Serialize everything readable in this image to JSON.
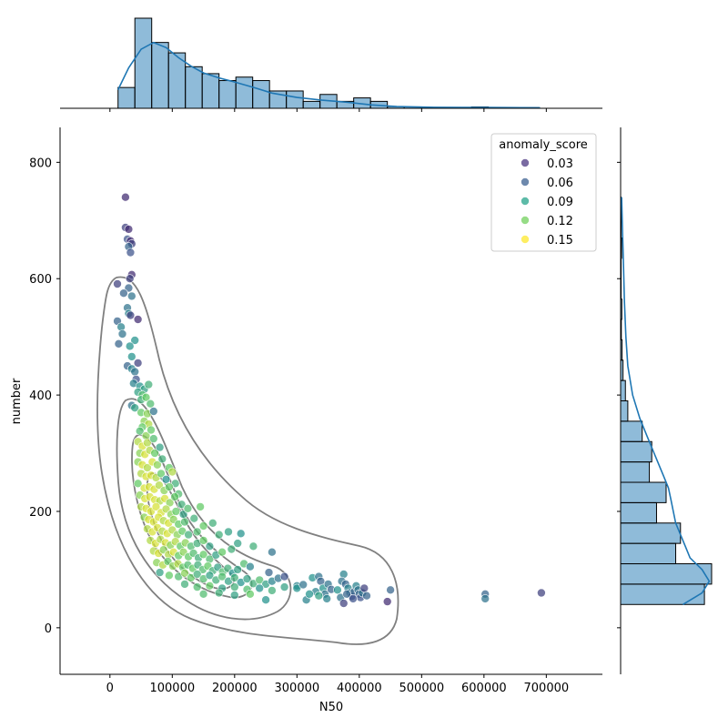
{
  "chart_data": {
    "type": "scatter",
    "variant": "jointplot with marginal histograms, KDE curves and density contours",
    "xlabel": "N50",
    "ylabel": "number",
    "xlim": [
      -80000,
      790000
    ],
    "ylim": [
      -80,
      860
    ],
    "x_ticks": [
      0,
      100000,
      200000,
      300000,
      400000,
      500000,
      600000,
      700000
    ],
    "x_tick_labels": [
      "0",
      "100000",
      "200000",
      "300000",
      "400000",
      "500000",
      "600000",
      "700000"
    ],
    "y_ticks": [
      0,
      200,
      400,
      600,
      800
    ],
    "y_tick_labels": [
      "0",
      "200",
      "400",
      "600",
      "800"
    ],
    "grid": false,
    "legend": {
      "title": "anomaly_score",
      "placement": "top-right",
      "entries": [
        {
          "label": "0.03",
          "color": "#46327e"
        },
        {
          "label": "0.06",
          "color": "#365c8d"
        },
        {
          "label": "0.09",
          "color": "#1fa187"
        },
        {
          "label": "0.12",
          "color": "#6ece58"
        },
        {
          "label": "0.15",
          "color": "#fde725"
        }
      ]
    },
    "colormap": "viridis",
    "hue_range": [
      0.0,
      0.16
    ],
    "points": [
      [
        25000,
        740,
        0.02
      ],
      [
        25000,
        688,
        0.03
      ],
      [
        30000,
        685,
        0.02
      ],
      [
        28000,
        668,
        0.04
      ],
      [
        33000,
        665,
        0.02
      ],
      [
        35000,
        660,
        0.03
      ],
      [
        30000,
        655,
        0.05
      ],
      [
        33000,
        645,
        0.04
      ],
      [
        35000,
        607,
        0.02
      ],
      [
        32000,
        600,
        0.03
      ],
      [
        12000,
        591,
        0.03
      ],
      [
        30000,
        584,
        0.05
      ],
      [
        22000,
        575,
        0.05
      ],
      [
        35000,
        570,
        0.06
      ],
      [
        28000,
        550,
        0.06
      ],
      [
        30000,
        540,
        0.07
      ],
      [
        33000,
        537,
        0.03
      ],
      [
        45000,
        530,
        0.02
      ],
      [
        12000,
        527,
        0.05
      ],
      [
        18000,
        517,
        0.07
      ],
      [
        20000,
        505,
        0.06
      ],
      [
        14000,
        488,
        0.05
      ],
      [
        40000,
        494,
        0.08
      ],
      [
        32000,
        484,
        0.08
      ],
      [
        35000,
        466,
        0.08
      ],
      [
        28000,
        450,
        0.05
      ],
      [
        35000,
        445,
        0.07
      ],
      [
        45000,
        455,
        0.03
      ],
      [
        40000,
        440,
        0.06
      ],
      [
        42000,
        427,
        0.04
      ],
      [
        38000,
        420,
        0.07
      ],
      [
        48000,
        415,
        0.08
      ],
      [
        55000,
        410,
        0.09
      ],
      [
        62000,
        418,
        0.1
      ],
      [
        45000,
        405,
        0.09
      ],
      [
        52000,
        400,
        0.11
      ],
      [
        35000,
        382,
        0.06
      ],
      [
        40000,
        378,
        0.09
      ],
      [
        50000,
        392,
        0.1
      ],
      [
        58000,
        396,
        0.12
      ],
      [
        65000,
        385,
        0.11
      ],
      [
        50000,
        370,
        0.12
      ],
      [
        60000,
        368,
        0.13
      ],
      [
        70000,
        372,
        0.06
      ],
      [
        55000,
        355,
        0.13
      ],
      [
        62000,
        350,
        0.14
      ],
      [
        52000,
        345,
        0.12
      ],
      [
        48000,
        338,
        0.11
      ],
      [
        58000,
        330,
        0.13
      ],
      [
        66000,
        340,
        0.12
      ],
      [
        45000,
        320,
        0.14
      ],
      [
        52000,
        312,
        0.15
      ],
      [
        60000,
        318,
        0.14
      ],
      [
        70000,
        325,
        0.11
      ],
      [
        48000,
        300,
        0.13
      ],
      [
        56000,
        298,
        0.15
      ],
      [
        64000,
        305,
        0.14
      ],
      [
        72000,
        300,
        0.12
      ],
      [
        80000,
        310,
        0.09
      ],
      [
        45000,
        285,
        0.13
      ],
      [
        52000,
        280,
        0.15
      ],
      [
        60000,
        275,
        0.14
      ],
      [
        68000,
        285,
        0.15
      ],
      [
        76000,
        280,
        0.13
      ],
      [
        84000,
        290,
        0.1
      ],
      [
        95000,
        275,
        0.12
      ],
      [
        50000,
        265,
        0.14
      ],
      [
        58000,
        260,
        0.15
      ],
      [
        66000,
        262,
        0.15
      ],
      [
        74000,
        258,
        0.14
      ],
      [
        82000,
        265,
        0.12
      ],
      [
        90000,
        255,
        0.08
      ],
      [
        100000,
        268,
        0.14
      ],
      [
        105000,
        248,
        0.1
      ],
      [
        45000,
        248,
        0.12
      ],
      [
        55000,
        240,
        0.15
      ],
      [
        63000,
        242,
        0.15
      ],
      [
        71000,
        238,
        0.15
      ],
      [
        79000,
        245,
        0.14
      ],
      [
        87000,
        236,
        0.13
      ],
      [
        95000,
        242,
        0.12
      ],
      [
        110000,
        230,
        0.11
      ],
      [
        48000,
        228,
        0.13
      ],
      [
        56000,
        222,
        0.15
      ],
      [
        64000,
        225,
        0.15
      ],
      [
        72000,
        220,
        0.15
      ],
      [
        80000,
        218,
        0.14
      ],
      [
        88000,
        222,
        0.15
      ],
      [
        96000,
        215,
        0.13
      ],
      [
        104000,
        225,
        0.12
      ],
      [
        115000,
        212,
        0.1
      ],
      [
        50000,
        208,
        0.14
      ],
      [
        58000,
        205,
        0.15
      ],
      [
        66000,
        200,
        0.15
      ],
      [
        74000,
        208,
        0.15
      ],
      [
        82000,
        198,
        0.15
      ],
      [
        90000,
        204,
        0.14
      ],
      [
        98000,
        195,
        0.13
      ],
      [
        106000,
        200,
        0.12
      ],
      [
        118000,
        195,
        0.09
      ],
      [
        125000,
        205,
        0.11
      ],
      [
        55000,
        190,
        0.13
      ],
      [
        62000,
        186,
        0.15
      ],
      [
        70000,
        182,
        0.15
      ],
      [
        78000,
        190,
        0.15
      ],
      [
        86000,
        184,
        0.14
      ],
      [
        94000,
        180,
        0.15
      ],
      [
        102000,
        186,
        0.13
      ],
      [
        110000,
        178,
        0.12
      ],
      [
        120000,
        182,
        0.11
      ],
      [
        135000,
        188,
        0.1
      ],
      [
        145000,
        208,
        0.12
      ],
      [
        60000,
        170,
        0.14
      ],
      [
        68000,
        165,
        0.15
      ],
      [
        76000,
        172,
        0.15
      ],
      [
        84000,
        166,
        0.14
      ],
      [
        92000,
        162,
        0.15
      ],
      [
        100000,
        168,
        0.14
      ],
      [
        108000,
        160,
        0.13
      ],
      [
        116000,
        166,
        0.12
      ],
      [
        126000,
        160,
        0.1
      ],
      [
        140000,
        165,
        0.11
      ],
      [
        150000,
        175,
        0.12
      ],
      [
        165000,
        180,
        0.1
      ],
      [
        65000,
        150,
        0.14
      ],
      [
        73000,
        145,
        0.15
      ],
      [
        81000,
        152,
        0.14
      ],
      [
        89000,
        146,
        0.15
      ],
      [
        97000,
        142,
        0.13
      ],
      [
        105000,
        148,
        0.14
      ],
      [
        113000,
        140,
        0.12
      ],
      [
        121000,
        146,
        0.13
      ],
      [
        130000,
        140,
        0.11
      ],
      [
        140000,
        145,
        0.1
      ],
      [
        150000,
        150,
        0.12
      ],
      [
        160000,
        140,
        0.09
      ],
      [
        175000,
        160,
        0.1
      ],
      [
        70000,
        132,
        0.14
      ],
      [
        78000,
        128,
        0.15
      ],
      [
        86000,
        134,
        0.13
      ],
      [
        94000,
        126,
        0.14
      ],
      [
        102000,
        130,
        0.15
      ],
      [
        110000,
        124,
        0.12
      ],
      [
        118000,
        130,
        0.13
      ],
      [
        126000,
        122,
        0.12
      ],
      [
        134000,
        128,
        0.11
      ],
      [
        142000,
        120,
        0.1
      ],
      [
        150000,
        126,
        0.12
      ],
      [
        160000,
        118,
        0.11
      ],
      [
        170000,
        125,
        0.09
      ],
      [
        180000,
        130,
        0.12
      ],
      [
        195000,
        135,
        0.1
      ],
      [
        205000,
        145,
        0.09
      ],
      [
        75000,
        112,
        0.13
      ],
      [
        85000,
        108,
        0.14
      ],
      [
        93000,
        114,
        0.12
      ],
      [
        101000,
        106,
        0.13
      ],
      [
        109000,
        110,
        0.14
      ],
      [
        117000,
        104,
        0.12
      ],
      [
        125000,
        108,
        0.11
      ],
      [
        133000,
        102,
        0.12
      ],
      [
        141000,
        108,
        0.1
      ],
      [
        149000,
        100,
        0.11
      ],
      [
        157000,
        106,
        0.12
      ],
      [
        165000,
        98,
        0.1
      ],
      [
        173000,
        104,
        0.09
      ],
      [
        181000,
        96,
        0.11
      ],
      [
        189000,
        102,
        0.1
      ],
      [
        197000,
        94,
        0.08
      ],
      [
        205000,
        100,
        0.09
      ],
      [
        215000,
        110,
        0.11
      ],
      [
        225000,
        105,
        0.07
      ],
      [
        80000,
        95,
        0.09
      ],
      [
        95000,
        90,
        0.12
      ],
      [
        110000,
        88,
        0.11
      ],
      [
        120000,
        94,
        0.13
      ],
      [
        130000,
        86,
        0.12
      ],
      [
        140000,
        92,
        0.1
      ],
      [
        150000,
        84,
        0.11
      ],
      [
        160000,
        90,
        0.09
      ],
      [
        170000,
        82,
        0.1
      ],
      [
        180000,
        88,
        0.11
      ],
      [
        190000,
        80,
        0.09
      ],
      [
        200000,
        86,
        0.1
      ],
      [
        210000,
        78,
        0.08
      ],
      [
        220000,
        84,
        0.09
      ],
      [
        230000,
        76,
        0.1
      ],
      [
        240000,
        82,
        0.11
      ],
      [
        250000,
        75,
        0.09
      ],
      [
        260000,
        80,
        0.07
      ],
      [
        270000,
        85,
        0.06
      ],
      [
        280000,
        88,
        0.04
      ],
      [
        120000,
        75,
        0.1
      ],
      [
        140000,
        70,
        0.11
      ],
      [
        160000,
        72,
        0.12
      ],
      [
        180000,
        68,
        0.09
      ],
      [
        200000,
        70,
        0.1
      ],
      [
        220000,
        66,
        0.11
      ],
      [
        240000,
        68,
        0.08
      ],
      [
        260000,
        64,
        0.1
      ],
      [
        280000,
        70,
        0.09
      ],
      [
        300000,
        72,
        0.07
      ],
      [
        150000,
        58,
        0.11
      ],
      [
        175000,
        60,
        0.1
      ],
      [
        200000,
        56,
        0.09
      ],
      [
        225000,
        58,
        0.12
      ],
      [
        250000,
        48,
        0.08
      ],
      [
        260000,
        130,
        0.06
      ],
      [
        190000,
        165,
        0.09
      ],
      [
        210000,
        162,
        0.08
      ],
      [
        230000,
        140,
        0.1
      ],
      [
        255000,
        95,
        0.05
      ],
      [
        300000,
        68,
        0.08
      ],
      [
        310000,
        74,
        0.06
      ],
      [
        315000,
        48,
        0.07
      ],
      [
        325000,
        86,
        0.08
      ],
      [
        330000,
        62,
        0.07
      ],
      [
        335000,
        88,
        0.06
      ],
      [
        338000,
        80,
        0.05
      ],
      [
        342000,
        68,
        0.08
      ],
      [
        345000,
        58,
        0.06
      ],
      [
        348000,
        50,
        0.07
      ],
      [
        350000,
        75,
        0.06
      ],
      [
        355000,
        66,
        0.05
      ],
      [
        335000,
        55,
        0.09
      ],
      [
        320000,
        58,
        0.08
      ],
      [
        375000,
        92,
        0.07
      ],
      [
        372000,
        80,
        0.06
      ],
      [
        378000,
        75,
        0.05
      ],
      [
        382000,
        68,
        0.07
      ],
      [
        385000,
        60,
        0.06
      ],
      [
        388000,
        54,
        0.04
      ],
      [
        392000,
        62,
        0.05
      ],
      [
        395000,
        72,
        0.07
      ],
      [
        398000,
        65,
        0.06
      ],
      [
        400000,
        58,
        0.05
      ],
      [
        402000,
        52,
        0.04
      ],
      [
        405000,
        60,
        0.06
      ],
      [
        408000,
        68,
        0.03
      ],
      [
        412000,
        55,
        0.05
      ],
      [
        370000,
        52,
        0.06
      ],
      [
        365000,
        65,
        0.08
      ],
      [
        375000,
        42,
        0.03
      ],
      [
        380000,
        58,
        0.05
      ],
      [
        390000,
        50,
        0.04
      ],
      [
        445000,
        45,
        0.02
      ],
      [
        450000,
        65,
        0.05
      ],
      [
        602000,
        58,
        0.05
      ],
      [
        602000,
        50,
        0.06
      ],
      [
        692000,
        60,
        0.03
      ]
    ],
    "contour_levels": [
      "outer",
      "second",
      "third",
      "inner"
    ],
    "top_histogram": {
      "axis": "N50",
      "bin_edges": [
        13000,
        40000,
        67000,
        94000,
        121000,
        148000,
        175000,
        202000,
        229000,
        256000,
        283000,
        310000,
        337000,
        364000,
        391000,
        418000,
        445000,
        472000,
        499000,
        526000,
        553000,
        580000,
        607000,
        634000,
        661000,
        688000
      ],
      "counts": [
        6,
        26,
        19,
        16,
        12,
        10,
        8,
        9,
        8,
        5,
        5,
        2,
        4,
        2,
        3,
        2,
        0.5,
        0.4,
        0.2,
        0.2,
        0.2,
        0.4,
        0.2,
        0.2,
        0.2
      ],
      "kde_x": [
        13000,
        30000,
        50000,
        70000,
        90000,
        110000,
        130000,
        150000,
        175000,
        200000,
        230000,
        260000,
        300000,
        340000,
        380000,
        420000,
        460000,
        520000,
        600000,
        690000
      ],
      "kde_y": [
        5.5,
        12,
        17.5,
        19.5,
        18,
        15,
        12.5,
        10.5,
        9,
        7.8,
        6.2,
        4.5,
        3.2,
        2.4,
        1.8,
        1.0,
        0.5,
        0.3,
        0.25,
        0.15
      ]
    },
    "right_histogram": {
      "axis": "number",
      "bin_edges": [
        40,
        75,
        110,
        145,
        180,
        215,
        250,
        285,
        320,
        355,
        390,
        425,
        460,
        495,
        530,
        565,
        600,
        635,
        670,
        705,
        740
      ],
      "counts": [
        35,
        38,
        23,
        25,
        15,
        19,
        12,
        13,
        9,
        3,
        2,
        1,
        0.6,
        0.3,
        0.5,
        0.2,
        0.2,
        0.4,
        0.2,
        0.2
      ],
      "kde_y": [
        40,
        60,
        80,
        100,
        120,
        140,
        160,
        180,
        200,
        220,
        240,
        260,
        280,
        300,
        330,
        360,
        400,
        450,
        500,
        560,
        620,
        680,
        740
      ],
      "kde_x": [
        26,
        34,
        37,
        34,
        29,
        27,
        25,
        23,
        22,
        21,
        20,
        18,
        16,
        14,
        11,
        8,
        5,
        3,
        2.2,
        1.6,
        1.2,
        0.8,
        0.4
      ]
    }
  }
}
